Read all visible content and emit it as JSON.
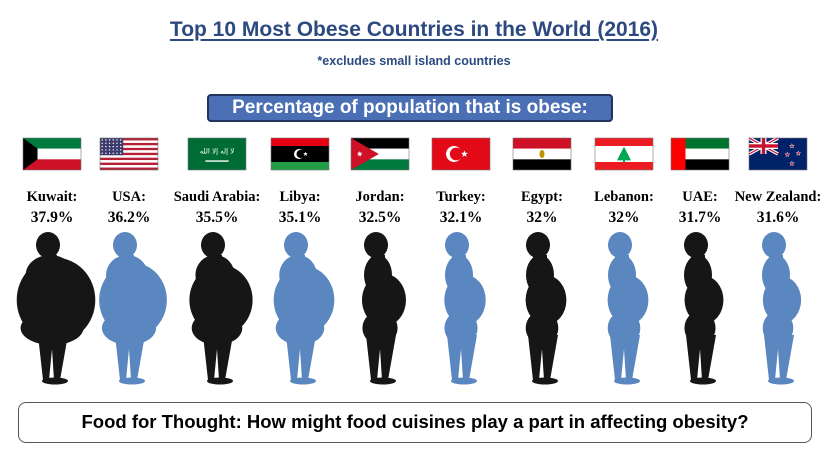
{
  "title": "Top 10 Most Obese Countries in the World (2016)",
  "subtitle": "*excludes small island countries",
  "banner": "Percentage of population that is obese:",
  "footer": "Food for Thought: How might food cuisines play a part in affecting obesity?",
  "flag_text_saudi": "ﻻ إله إلا الله",
  "colors": {
    "dark": "#161616",
    "light": "#5b87c0",
    "title": "#2c4a80"
  },
  "chart_data": {
    "type": "bar",
    "categories": [
      "Kuwait:",
      "USA:",
      "Saudi Arabia:",
      "Libya:",
      "Jordan:",
      "Turkey:",
      "Egypt:",
      "Lebanon:",
      "UAE:",
      "New Zealand:"
    ],
    "values": [
      37.9,
      36.2,
      35.5,
      35.1,
      32.5,
      32.1,
      32,
      32,
      31.7,
      31.6
    ],
    "value_labels": [
      "37.9%",
      "36.2%",
      "35.5%",
      "35.1%",
      "32.5%",
      "32.1%",
      "32%",
      "32%",
      "31.7%",
      "31.6%"
    ],
    "flags": [
      "kuwait",
      "usa",
      "saudi-arabia",
      "libya",
      "jordan",
      "turkey",
      "egypt",
      "lebanon",
      "uae",
      "new-zealand"
    ],
    "silhouette_colors": [
      "#161616",
      "#5b87c0",
      "#161616",
      "#5b87c0",
      "#161616",
      "#5b87c0",
      "#161616",
      "#5b87c0",
      "#161616",
      "#5b87c0"
    ],
    "ylabel": "Percentage of population that is obese:",
    "unit": "%"
  }
}
